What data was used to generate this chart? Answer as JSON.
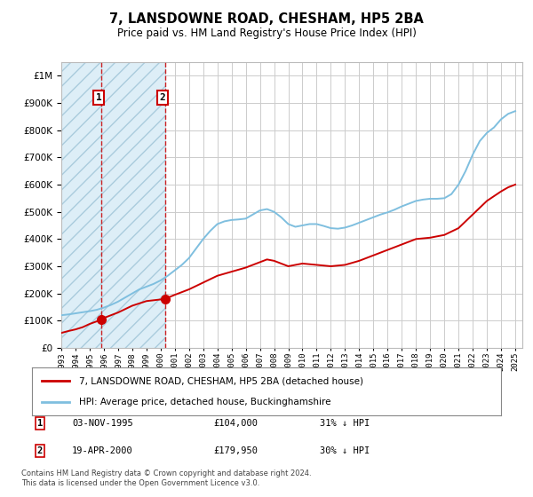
{
  "title": "7, LANSDOWNE ROAD, CHESHAM, HP5 2BA",
  "subtitle": "Price paid vs. HM Land Registry's House Price Index (HPI)",
  "legend_line1": "7, LANSDOWNE ROAD, CHESHAM, HP5 2BA (detached house)",
  "legend_line2": "HPI: Average price, detached house, Buckinghamshire",
  "footnote": "Contains HM Land Registry data © Crown copyright and database right 2024.\nThis data is licensed under the Open Government Licence v3.0.",
  "sale1_label": "1",
  "sale1_date": "03-NOV-1995",
  "sale1_price": "£104,000",
  "sale1_hpi": "31% ↓ HPI",
  "sale1_year": 1995.84,
  "sale1_value": 104000,
  "sale2_label": "2",
  "sale2_date": "19-APR-2000",
  "sale2_price": "£179,950",
  "sale2_hpi": "30% ↓ HPI",
  "sale2_year": 2000.3,
  "sale2_value": 179950,
  "hpi_color": "#7fbfdf",
  "price_color": "#cc0000",
  "background_color": "#ffffff",
  "grid_color": "#cccccc",
  "hatch_facecolor": "#ddeef7",
  "hatch_edgecolor": "#aaccdd",
  "ylim_min": 0,
  "ylim_max": 1000000,
  "xlim_min": 1993.0,
  "xlim_max": 2025.5,
  "hpi_years": [
    1993,
    1993.5,
    1994,
    1994.5,
    1995,
    1995.5,
    1996,
    1996.5,
    1997,
    1997.5,
    1998,
    1998.5,
    1999,
    1999.5,
    2000,
    2000.5,
    2001,
    2001.5,
    2002,
    2002.5,
    2003,
    2003.5,
    2004,
    2004.5,
    2005,
    2005.5,
    2006,
    2006.5,
    2007,
    2007.5,
    2008,
    2008.5,
    2009,
    2009.5,
    2010,
    2010.5,
    2011,
    2011.5,
    2012,
    2012.5,
    2013,
    2013.5,
    2014,
    2014.5,
    2015,
    2015.5,
    2016,
    2016.5,
    2017,
    2017.5,
    2018,
    2018.5,
    2019,
    2019.5,
    2020,
    2020.5,
    2021,
    2021.5,
    2022,
    2022.5,
    2023,
    2023.5,
    2024,
    2024.5,
    2025
  ],
  "hpi_values": [
    120000,
    123000,
    127000,
    131000,
    135000,
    140000,
    148000,
    158000,
    170000,
    185000,
    200000,
    215000,
    225000,
    235000,
    248000,
    265000,
    285000,
    305000,
    330000,
    365000,
    400000,
    430000,
    455000,
    465000,
    470000,
    472000,
    475000,
    490000,
    505000,
    510000,
    500000,
    480000,
    455000,
    445000,
    450000,
    455000,
    455000,
    448000,
    440000,
    438000,
    442000,
    450000,
    460000,
    470000,
    480000,
    490000,
    498000,
    508000,
    520000,
    530000,
    540000,
    545000,
    548000,
    548000,
    550000,
    565000,
    600000,
    650000,
    710000,
    760000,
    790000,
    810000,
    840000,
    860000,
    870000
  ],
  "price_years": [
    1993,
    1993.5,
    1994,
    1994.5,
    1995,
    1995.84,
    1996,
    1997,
    1998,
    1999,
    2000,
    2000.3,
    2001,
    2002,
    2003,
    2004,
    2005,
    2006,
    2007,
    2007.5,
    2008,
    2009,
    2010,
    2011,
    2012,
    2013,
    2014,
    2015,
    2016,
    2017,
    2018,
    2019,
    2020,
    2021,
    2022,
    2023,
    2024,
    2024.5,
    2025
  ],
  "price_values": [
    55000,
    62000,
    68000,
    76000,
    88000,
    104000,
    110000,
    130000,
    155000,
    172000,
    178000,
    179950,
    195000,
    215000,
    240000,
    265000,
    280000,
    295000,
    315000,
    325000,
    320000,
    300000,
    310000,
    305000,
    300000,
    305000,
    320000,
    340000,
    360000,
    380000,
    400000,
    405000,
    415000,
    440000,
    490000,
    540000,
    575000,
    590000,
    600000
  ]
}
